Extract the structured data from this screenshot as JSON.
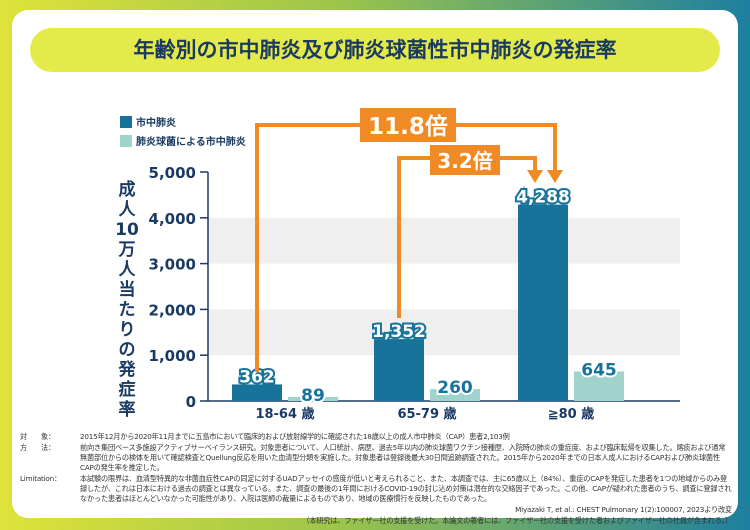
{
  "title": "年齢別の市中肺炎及び肺炎球菌性市中肺炎の発症率",
  "y_axis_label": "成人10万人当たりの発症率",
  "chart_data": {
    "type": "bar",
    "title": "年齢別の市中肺炎及び肺炎球菌性市中肺炎の発症率",
    "ylabel": "成人10万人当たりの発症率",
    "ylim": [
      0,
      5000
    ],
    "yticks": [
      "0",
      "1,000",
      "2,000",
      "3,000",
      "4,000",
      "5,000"
    ],
    "categories": [
      "18-64 歳",
      "65-79 歳",
      "≧80 歳"
    ],
    "series": [
      {
        "name": "市中肺炎",
        "color": "#17739a",
        "values": [
          362,
          1352,
          4288
        ],
        "labels": [
          "362",
          "1,352",
          "4,288"
        ]
      },
      {
        "name": "肺炎球菌による市中肺炎",
        "color": "#9fd3cc",
        "values": [
          89,
          260,
          645
        ],
        "labels": [
          "89",
          "260",
          "645"
        ]
      }
    ],
    "annotations": [
      {
        "label": "11.8倍",
        "from": "18-64 歳",
        "to": "≧80 歳"
      },
      {
        "label": "3.2倍",
        "from": "65-79 歳",
        "to": "≧80 歳"
      }
    ],
    "accent": "#f08a24"
  },
  "notes": [
    {
      "key": "対　　象：",
      "text": "2015年12月から2020年11月までに五島市において臨床的および放射線学的に確認された18歳以上の成人市中肺炎（CAP）患者2,103例"
    },
    {
      "key": "方　　法：",
      "text": "前向き集団ベース多施設アクティブサーベイランス研究。対象患者について、人口統計、病歴、過去5年以内の肺炎球菌ワクチン接種歴、入院時の肺炎の重症度、および臨床転帰を収集した。喀痰および通常無菌部位からの検体を用いて確認検査とQuellung反応を用いた血清型分類を実施した。対象患者は登録後最大30日間追跡調査された。2015年から2020年までの日本人成人におけるCAPおよび肺炎球菌性CAPの発生率を推定した。"
    },
    {
      "key": "Limitation：",
      "text": "本試験の限界は、血清型特異的な非菌血症性CAPの同定に対するUADアッセイの感度が低いと考えられること、また、本調査では、主に65歳以上（84%）、重症のCAPを発症した患者を1つの地域からのみ登録したが、これは日本における過去の調査とは異なっている。また、調査の最後の1年間におけるCOVID-19の封じ込め対策は潜在的な交絡因子であった。この他、CAPが疑われた患者のうち、調査に登録されなかった患者はほとんどいなかった可能性があり、入院は医師の裁量によるものであり、地域の医療慣行を反映したものであった。"
    }
  ],
  "reference": "Miyazaki T, et al.: CHEST Pulmonary 1(2):100007, 2023より改変",
  "disclosure": "（本研究は、ファイザー社の支援を受けた。本論文の著者には、ファイザー社の支援を受けた者およびファイザー社の社員が含まれる。）"
}
